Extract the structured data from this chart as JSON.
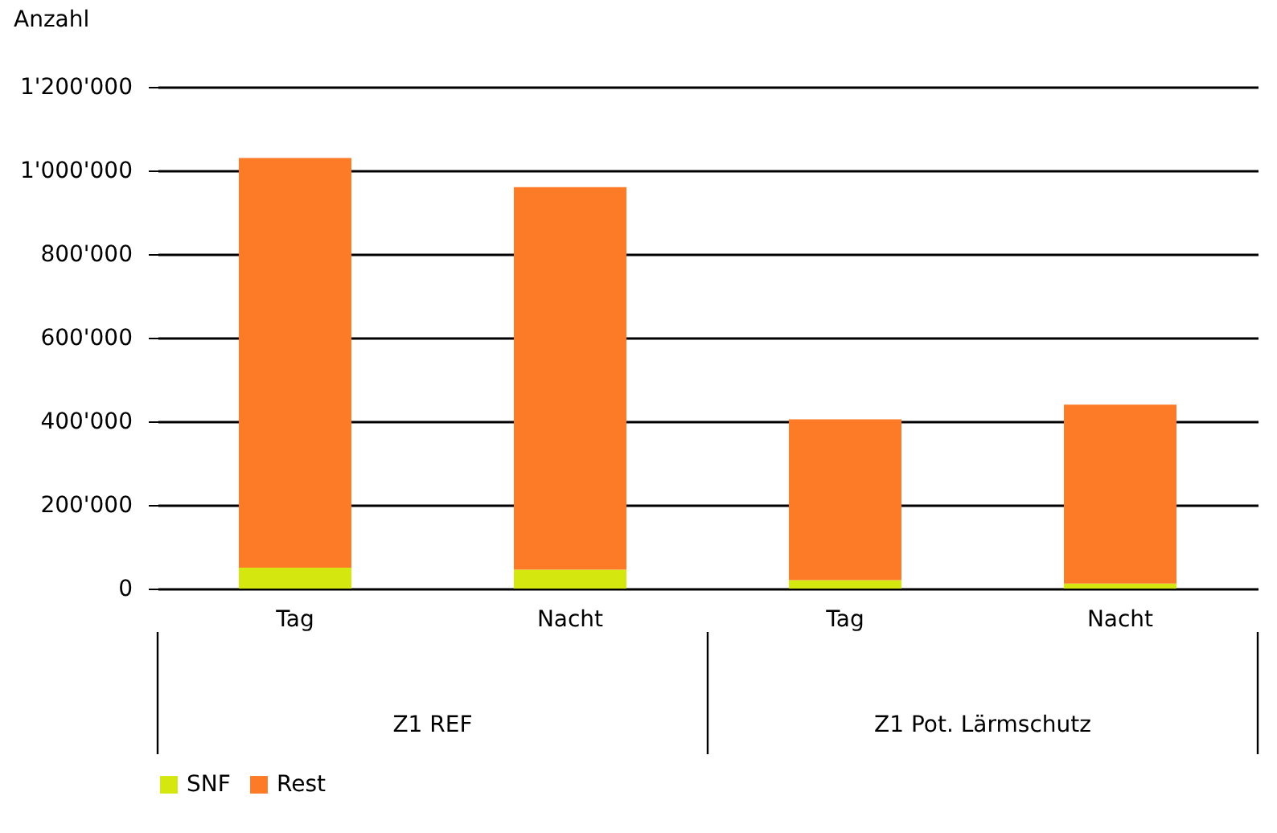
{
  "chart_data": {
    "type": "bar",
    "ylabel": "Anzahl",
    "stacked": true,
    "categories": [
      "Tag",
      "Nacht",
      "Tag",
      "Nacht"
    ],
    "series": [
      {
        "name": "SNF",
        "color": "#d4e80f",
        "values": [
          50000,
          45000,
          20000,
          12000
        ]
      },
      {
        "name": "Rest",
        "color": "#fd7b27",
        "values": [
          980000,
          915000,
          385000,
          428000
        ]
      }
    ],
    "ylim": [
      0,
      1200000
    ],
    "yticks": [
      0,
      {
        "value": 200000,
        "label": "200'000"
      },
      {
        "value": 400000,
        "label": "400'000"
      },
      {
        "value": 600000,
        "label": "600'000"
      },
      {
        "value": 800000,
        "label": "800'000"
      },
      {
        "value": 1000000,
        "label": "1'000'000"
      },
      {
        "value": 1200000,
        "label": "1'200'000"
      }
    ],
    "grid": "y",
    "legend": "bottom",
    "annotations": [
      "Z1 REF",
      "Z1 Pot. Lärmschutz"
    ]
  }
}
